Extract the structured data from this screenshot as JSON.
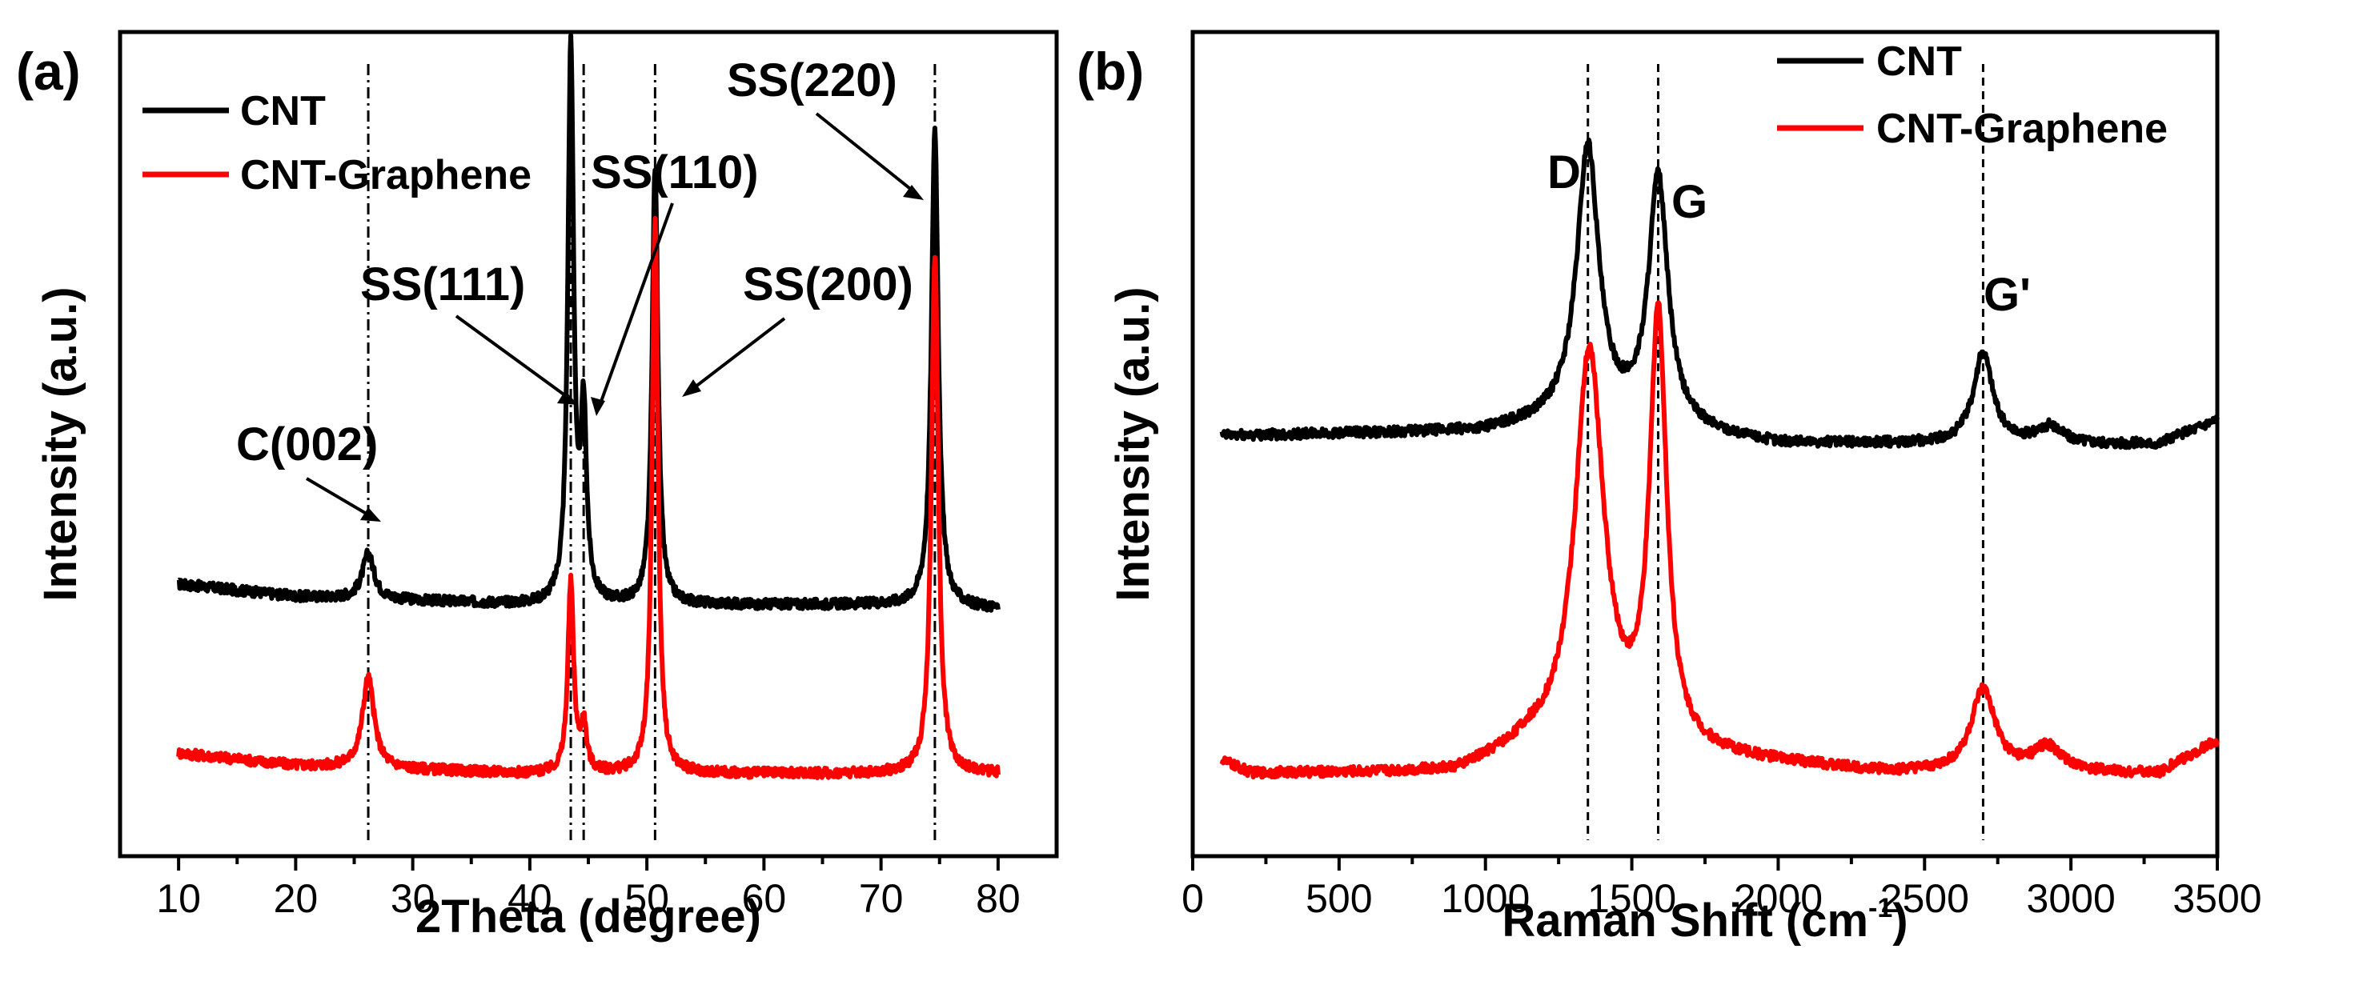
{
  "colors": {
    "cnt": "#000000",
    "cnt_graphene": "#ff0000"
  },
  "chart_data": [
    {
      "type": "line",
      "panel_label": "(a)",
      "xlabel": "2Theta (degree)",
      "ylabel": "Intensity (a.u.)",
      "xlim": [
        5,
        85
      ],
      "ylim": [
        0,
        1
      ],
      "xticks": [
        10,
        20,
        30,
        40,
        50,
        60,
        70,
        80
      ],
      "legend": [
        "CNT",
        "CNT-Graphene"
      ],
      "legend_position": "top-left",
      "series": [
        {
          "name": "CNT",
          "color": "#000000",
          "baseline": 0.33,
          "x_range": [
            10,
            80
          ],
          "baseline_points": [
            [
              10,
              0.33
            ],
            [
              20,
              0.315
            ],
            [
              30,
              0.31
            ],
            [
              40,
              0.305
            ],
            [
              50,
              0.305
            ],
            [
              60,
              0.305
            ],
            [
              70,
              0.305
            ],
            [
              80,
              0.3
            ]
          ],
          "peaks": [
            {
              "x": 26.2,
              "height": 0.055,
              "width": 0.6
            },
            {
              "x": 43.5,
              "height": 0.67,
              "width": 0.3
            },
            {
              "x": 44.6,
              "height": 0.22,
              "width": 0.3
            },
            {
              "x": 50.7,
              "height": 0.53,
              "width": 0.3
            },
            {
              "x": 74.6,
              "height": 0.58,
              "width": 0.35
            }
          ]
        },
        {
          "name": "CNT-Graphene",
          "color": "#ff0000",
          "baseline": 0.125,
          "x_range": [
            10,
            80
          ],
          "baseline_points": [
            [
              10,
              0.125
            ],
            [
              20,
              0.11
            ],
            [
              30,
              0.105
            ],
            [
              40,
              0.1
            ],
            [
              50,
              0.1
            ],
            [
              60,
              0.1
            ],
            [
              70,
              0.1
            ],
            [
              80,
              0.1
            ]
          ],
          "peaks": [
            {
              "x": 26.2,
              "height": 0.11,
              "width": 0.6
            },
            {
              "x": 43.5,
              "height": 0.23,
              "width": 0.3
            },
            {
              "x": 44.6,
              "height": 0.055,
              "width": 0.3
            },
            {
              "x": 50.7,
              "height": 0.67,
              "width": 0.3
            },
            {
              "x": 74.6,
              "height": 0.63,
              "width": 0.35
            }
          ]
        }
      ],
      "dash_lines_x": [
        26.2,
        43.5,
        44.6,
        50.7,
        74.6
      ],
      "annotations": [
        {
          "text": "C(002)",
          "x": 26.2
        },
        {
          "text": "SS(111)",
          "x": 43.5
        },
        {
          "text": "SS(110)",
          "x": 44.6
        },
        {
          "text": "SS(200)",
          "x": 50.7
        },
        {
          "text": "SS(220)",
          "x": 74.6
        }
      ]
    },
    {
      "type": "line",
      "panel_label": "(b)",
      "xlabel": "Raman Shift (cm",
      "xlabel_sup": "-1",
      "xlabel_end": ")",
      "ylabel": "Intensity (a.u.)",
      "xlim": [
        0,
        3500
      ],
      "ylim": [
        0,
        1
      ],
      "xticks": [
        0,
        500,
        1000,
        1500,
        2000,
        2500,
        3000,
        3500
      ],
      "legend": [
        "CNT",
        "CNT-Graphene"
      ],
      "legend_position": "top-right",
      "series": [
        {
          "name": "CNT",
          "color": "#000000",
          "baseline": 0.5,
          "x_range": [
            100,
            3500
          ],
          "baseline_points": [
            [
              100,
              0.51
            ],
            [
              1000,
              0.515
            ],
            [
              1300,
              0.53
            ],
            [
              2000,
              0.5
            ],
            [
              3300,
              0.5
            ],
            [
              3500,
              0.53
            ]
          ],
          "peaks": [
            {
              "x": 1350,
              "height": 0.33,
              "width": 45
            },
            {
              "x": 1590,
              "height": 0.3,
              "width": 40
            },
            {
              "x": 2700,
              "height": 0.11,
              "width": 40
            },
            {
              "x": 2930,
              "height": 0.02,
              "width": 50
            }
          ]
        },
        {
          "name": "CNT-Graphene",
          "color": "#ff0000",
          "baseline": 0.1,
          "x_range": [
            100,
            3500
          ],
          "baseline_points": [
            [
              100,
              0.115
            ],
            [
              200,
              0.1
            ],
            [
              900,
              0.1
            ],
            [
              1150,
              0.13
            ],
            [
              1700,
              0.12
            ],
            [
              2400,
              0.1
            ],
            [
              3300,
              0.1
            ],
            [
              3500,
              0.14
            ]
          ],
          "peaks": [
            {
              "x": 1355,
              "height": 0.48,
              "width": 60
            },
            {
              "x": 1590,
              "height": 0.52,
              "width": 35
            },
            {
              "x": 2700,
              "height": 0.1,
              "width": 50
            },
            {
              "x": 2920,
              "height": 0.03,
              "width": 60
            }
          ]
        }
      ],
      "dash_lines_x": [
        1350,
        1590,
        2700
      ],
      "annotations": [
        {
          "text": "D",
          "x": 1350
        },
        {
          "text": "G",
          "x": 1590
        },
        {
          "text": "G'",
          "x": 2700
        }
      ]
    }
  ]
}
